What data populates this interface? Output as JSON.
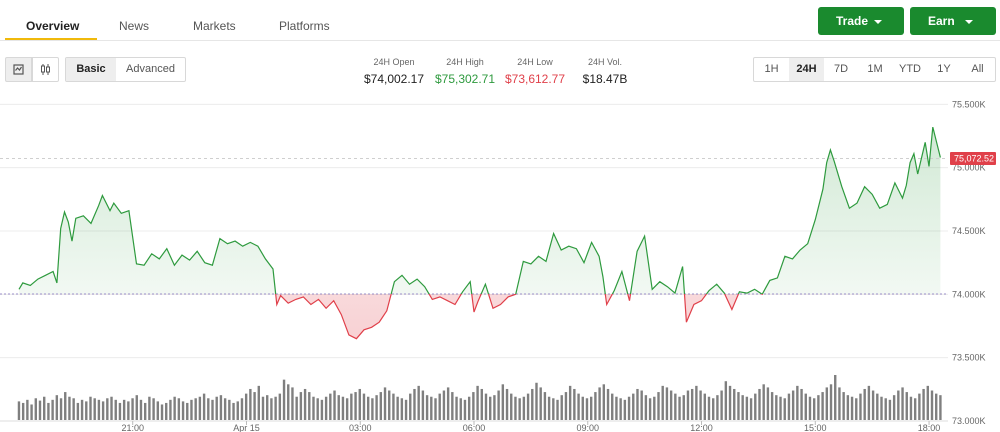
{
  "nav": {
    "tabs": [
      {
        "label": "Overview",
        "active": true
      },
      {
        "label": "News",
        "active": false
      },
      {
        "label": "Markets",
        "active": false
      },
      {
        "label": "Platforms",
        "active": false
      }
    ],
    "trade_label": "Trade",
    "earn_label": "Earn"
  },
  "toolbar": {
    "chart_style_icons": [
      "line-chart-icon",
      "candlestick-icon"
    ],
    "mode_options": [
      {
        "label": "Basic",
        "active": true
      },
      {
        "label": "Advanced",
        "active": false
      }
    ],
    "ranges": [
      {
        "label": "1H",
        "active": false
      },
      {
        "label": "24H",
        "active": true
      },
      {
        "label": "7D",
        "active": false
      },
      {
        "label": "1M",
        "active": false
      },
      {
        "label": "YTD",
        "active": false
      },
      {
        "label": "1Y",
        "active": false
      },
      {
        "label": "All",
        "active": false
      }
    ]
  },
  "stats": [
    {
      "key": "24H Open",
      "value": "$74,002.17",
      "tone": "neutral"
    },
    {
      "key": "24H High",
      "value": "$75,302.71",
      "tone": "up"
    },
    {
      "key": "24H Low",
      "value": "$73,612.77",
      "tone": "down"
    },
    {
      "key": "24H Vol.",
      "value": "$18.47B",
      "tone": "neutral"
    }
  ],
  "colors": {
    "up": "#2e9a3e",
    "down": "#e0404a",
    "accent": "#1a8a2e",
    "tab_underline": "#f0b90b",
    "volume": "#7f7f7f"
  },
  "chart_data": {
    "type": "area",
    "open": 74002.17,
    "current_label": "75,072.52",
    "current_value": 75072.52,
    "ylim": [
      73000,
      75550
    ],
    "y_ticks": [
      73000,
      73500,
      74000,
      74500,
      75000,
      75500
    ],
    "y_tick_labels": [
      "73.000K",
      "73.500K",
      "74.000K",
      "74.500K",
      "75.000K",
      "75.500K"
    ],
    "x_ticks": [
      {
        "label": "21:00",
        "t": 3.5
      },
      {
        "label": "Apr 15",
        "t": 6.5
      },
      {
        "label": "03:00",
        "t": 9.5
      },
      {
        "label": "06:00",
        "t": 12.5
      },
      {
        "label": "09:00",
        "t": 15.5
      },
      {
        "label": "12:00",
        "t": 18.5
      },
      {
        "label": "15:00",
        "t": 21.5
      },
      {
        "label": "18:00",
        "t": 24.5
      }
    ],
    "price": [
      [
        0.5,
        74040
      ],
      [
        0.6,
        74090
      ],
      [
        0.8,
        74070
      ],
      [
        1.0,
        74120
      ],
      [
        1.2,
        74150
      ],
      [
        1.4,
        74180
      ],
      [
        1.5,
        74090
      ],
      [
        1.6,
        74520
      ],
      [
        1.7,
        74650
      ],
      [
        1.8,
        74570
      ],
      [
        1.9,
        74420
      ],
      [
        2.0,
        74600
      ],
      [
        2.2,
        74620
      ],
      [
        2.4,
        74560
      ],
      [
        2.6,
        74700
      ],
      [
        2.7,
        74780
      ],
      [
        2.9,
        74660
      ],
      [
        3.0,
        74720
      ],
      [
        3.2,
        74640
      ],
      [
        3.4,
        74660
      ],
      [
        3.6,
        74240
      ],
      [
        3.8,
        74230
      ],
      [
        4.0,
        74320
      ],
      [
        4.2,
        74280
      ],
      [
        4.4,
        74360
      ],
      [
        4.6,
        74230
      ],
      [
        4.8,
        74310
      ],
      [
        5.0,
        74270
      ],
      [
        5.2,
        74340
      ],
      [
        5.4,
        74250
      ],
      [
        5.6,
        74230
      ],
      [
        5.8,
        74440
      ],
      [
        6.0,
        74400
      ],
      [
        6.2,
        74420
      ],
      [
        6.4,
        74380
      ],
      [
        6.6,
        74410
      ],
      [
        6.8,
        74380
      ],
      [
        7.0,
        74280
      ],
      [
        7.2,
        74200
      ],
      [
        7.3,
        73920
      ],
      [
        7.4,
        73990
      ],
      [
        7.6,
        73930
      ],
      [
        7.8,
        73960
      ],
      [
        8.0,
        73980
      ],
      [
        8.2,
        73920
      ],
      [
        8.4,
        73960
      ],
      [
        8.6,
        73890
      ],
      [
        8.8,
        73950
      ],
      [
        9.0,
        73840
      ],
      [
        9.2,
        73680
      ],
      [
        9.4,
        73650
      ],
      [
        9.6,
        73720
      ],
      [
        9.8,
        73740
      ],
      [
        10.0,
        73780
      ],
      [
        10.2,
        73870
      ],
      [
        10.4,
        74100
      ],
      [
        10.6,
        74150
      ],
      [
        10.8,
        74080
      ],
      [
        11.0,
        74120
      ],
      [
        11.2,
        74060
      ],
      [
        11.4,
        73960
      ],
      [
        11.6,
        73980
      ],
      [
        11.8,
        73950
      ],
      [
        12.0,
        73920
      ],
      [
        12.2,
        74020
      ],
      [
        12.4,
        74100
      ],
      [
        12.5,
        73860
      ],
      [
        12.6,
        73940
      ],
      [
        12.8,
        74080
      ],
      [
        13.0,
        73890
      ],
      [
        13.2,
        73920
      ],
      [
        13.4,
        73980
      ],
      [
        13.6,
        74000
      ],
      [
        13.8,
        74260
      ],
      [
        14.0,
        74240
      ],
      [
        14.2,
        74300
      ],
      [
        14.4,
        74260
      ],
      [
        14.6,
        74480
      ],
      [
        14.8,
        74350
      ],
      [
        15.0,
        74380
      ],
      [
        15.2,
        74360
      ],
      [
        15.4,
        74250
      ],
      [
        15.6,
        74410
      ],
      [
        15.8,
        74300
      ],
      [
        15.9,
        74140
      ],
      [
        16.0,
        73920
      ],
      [
        16.2,
        74030
      ],
      [
        16.4,
        74180
      ],
      [
        16.6,
        73950
      ],
      [
        16.8,
        74340
      ],
      [
        17.0,
        74460
      ],
      [
        17.2,
        74040
      ],
      [
        17.4,
        74100
      ],
      [
        17.6,
        74060
      ],
      [
        17.8,
        74010
      ],
      [
        18.0,
        74220
      ],
      [
        18.1,
        73780
      ],
      [
        18.3,
        73920
      ],
      [
        18.5,
        73950
      ],
      [
        18.7,
        74030
      ],
      [
        18.9,
        74080
      ],
      [
        19.1,
        74010
      ],
      [
        19.3,
        73880
      ],
      [
        19.5,
        74020
      ],
      [
        19.7,
        74010
      ],
      [
        19.9,
        74040
      ],
      [
        20.1,
        74000
      ],
      [
        20.3,
        74110
      ],
      [
        20.5,
        74130
      ],
      [
        20.7,
        74300
      ],
      [
        20.9,
        74280
      ],
      [
        21.1,
        74350
      ],
      [
        21.3,
        74400
      ],
      [
        21.5,
        74590
      ],
      [
        21.7,
        74830
      ],
      [
        21.8,
        75040
      ],
      [
        21.9,
        75140
      ],
      [
        22.0,
        75050
      ],
      [
        22.2,
        74850
      ],
      [
        22.4,
        74680
      ],
      [
        22.6,
        74720
      ],
      [
        22.8,
        74850
      ],
      [
        23.0,
        74790
      ],
      [
        23.2,
        74680
      ],
      [
        23.4,
        74710
      ],
      [
        23.6,
        74880
      ],
      [
        23.8,
        74760
      ],
      [
        23.9,
        74860
      ],
      [
        24.0,
        75040
      ],
      [
        24.1,
        75110
      ],
      [
        24.2,
        74950
      ],
      [
        24.4,
        75200
      ],
      [
        24.5,
        75010
      ],
      [
        24.6,
        75320
      ],
      [
        24.8,
        75080
      ]
    ],
    "volume": [
      24,
      22,
      26,
      20,
      28,
      25,
      30,
      22,
      26,
      32,
      28,
      36,
      30,
      28,
      22,
      26,
      24,
      30,
      28,
      26,
      24,
      28,
      30,
      26,
      22,
      26,
      24,
      28,
      32,
      26,
      22,
      30,
      28,
      24,
      20,
      22,
      26,
      30,
      28,
      24,
      22,
      26,
      28,
      30,
      34,
      28,
      26,
      30,
      32,
      28,
      26,
      22,
      24,
      28,
      34,
      40,
      36,
      44,
      30,
      32,
      28,
      30,
      34,
      52,
      46,
      42,
      30,
      36,
      40,
      36,
      30,
      28,
      26,
      30,
      34,
      38,
      32,
      30,
      28,
      34,
      36,
      40,
      34,
      30,
      28,
      32,
      36,
      42,
      38,
      34,
      30,
      28,
      26,
      34,
      40,
      44,
      38,
      32,
      30,
      28,
      34,
      38,
      42,
      36,
      30,
      28,
      26,
      30,
      36,
      44,
      40,
      34,
      30,
      32,
      38,
      46,
      40,
      34,
      30,
      28,
      30,
      34,
      40,
      48,
      42,
      36,
      30,
      28,
      26,
      32,
      36,
      44,
      40,
      34,
      30,
      28,
      30,
      36,
      42,
      46,
      40,
      34,
      30,
      28,
      26,
      30,
      34,
      40,
      38,
      32,
      28,
      30,
      36,
      44,
      42,
      38,
      34,
      30,
      32,
      38,
      40,
      44,
      38,
      34,
      30,
      28,
      32,
      38,
      50,
      44,
      40,
      36,
      32,
      30,
      28,
      34,
      40,
      46,
      42,
      36,
      32,
      30,
      28,
      34,
      38,
      44,
      40,
      34,
      30,
      28,
      32,
      36,
      42,
      46,
      58,
      42,
      36,
      32,
      30,
      28,
      34,
      40,
      44,
      38,
      34,
      30,
      28,
      26,
      32,
      38,
      42,
      36,
      30,
      28,
      34,
      40,
      44,
      38,
      34,
      32
    ]
  }
}
